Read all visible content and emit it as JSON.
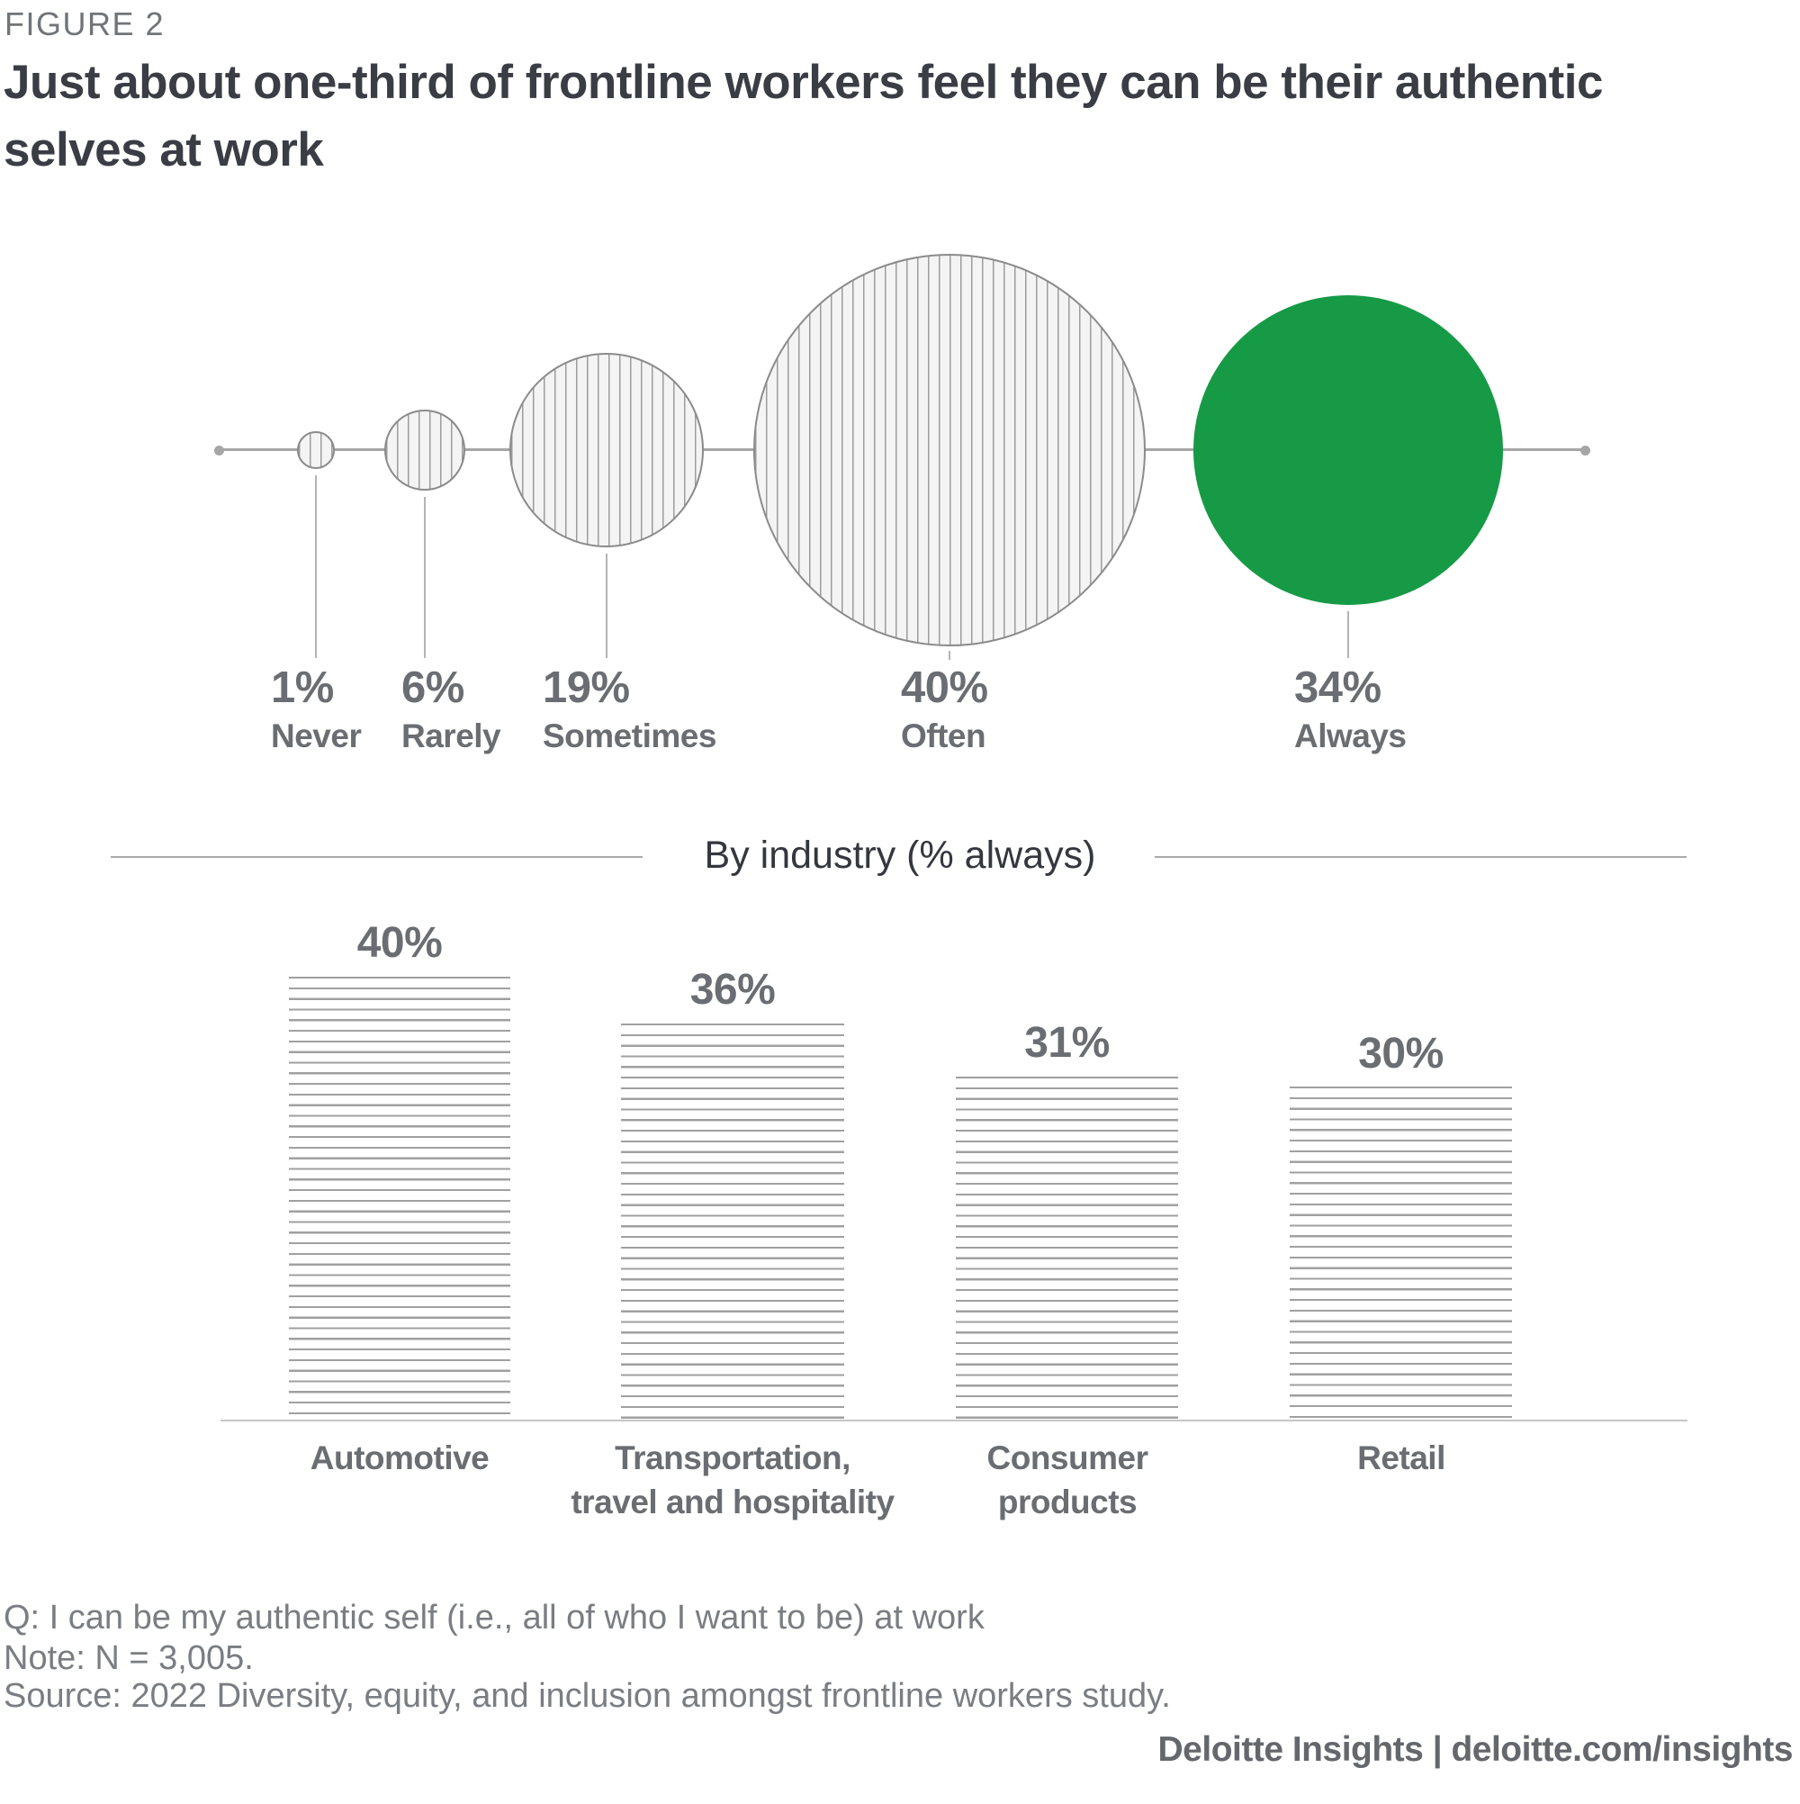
{
  "figure_label": "FIGURE 2",
  "title": "Just about one-third of frontline workers feel they can be their authentic selves at work",
  "colors": {
    "highlight_green": "#169a46",
    "hatch_gray": "#9d9d9d",
    "label_gray": "#6a6d71",
    "title_dark": "#3a3d44",
    "axis_gray": "#a6a6a6"
  },
  "chart_data": [
    {
      "type": "bubble",
      "categories": [
        "Never",
        "Rarely",
        "Sometimes",
        "Often",
        "Always"
      ],
      "values": [
        1,
        6,
        19,
        40,
        34
      ],
      "labels": [
        "1%",
        "6%",
        "19%",
        "40%",
        "34%"
      ],
      "unit": "%",
      "highlight_category": "Always",
      "highlight_color": "#169a46",
      "layout_hint": "bubbles centered on a horizontal axis line, size proportional to value, labels below"
    },
    {
      "type": "bar",
      "title": "By industry (% always)",
      "categories": [
        "Automotive",
        "Transportation, travel and hospitality",
        "Consumer products",
        "Retail"
      ],
      "categories_lines": [
        [
          "Automotive"
        ],
        [
          "Transportation,",
          "travel and hospitality"
        ],
        [
          "Consumer",
          "products"
        ],
        [
          "Retail"
        ]
      ],
      "values": [
        40,
        36,
        31,
        30
      ],
      "labels": [
        "40%",
        "36%",
        "31%",
        "30%"
      ],
      "unit": "%",
      "ylim": [
        0,
        40
      ],
      "layout_hint": "horizontal-striped bars, value labels above bars, grid off"
    }
  ],
  "footnotes": {
    "question": "Q: I can be my authentic self (i.e., all of who I want to be) at work",
    "note": "Note: N = 3,005.",
    "source": "Source: 2022 Diversity, equity, and inclusion amongst frontline workers study."
  },
  "footer": {
    "brand": "Deloitte Insights",
    "separator": " | ",
    "url": "deloitte.com/insights"
  }
}
